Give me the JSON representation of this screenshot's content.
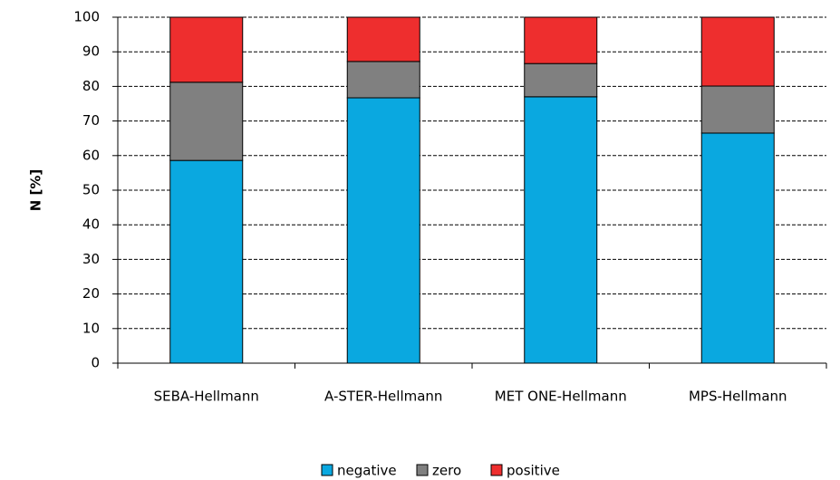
{
  "chart_data": {
    "type": "stacked-bar",
    "y_label": "N [%]",
    "categories": [
      "SEBA-Hellmann",
      "A-STER-Hellmann",
      "MET ONE-Hellmann",
      "MPS-Hellmann"
    ],
    "series": [
      {
        "name": "negative",
        "color": "#0aa8e0",
        "values": [
          58.6,
          76.7,
          77.0,
          66.5
        ]
      },
      {
        "name": "zero",
        "color": "#808080",
        "values": [
          22.6,
          10.5,
          9.6,
          13.6
        ]
      },
      {
        "name": "positive",
        "color": "#ee2e2e",
        "values": [
          18.8,
          12.8,
          13.4,
          19.9
        ]
      }
    ],
    "ylim": [
      0,
      100
    ],
    "yticks": [
      0,
      10,
      20,
      30,
      40,
      50,
      60,
      70,
      80,
      90,
      100
    ],
    "grid": true
  }
}
